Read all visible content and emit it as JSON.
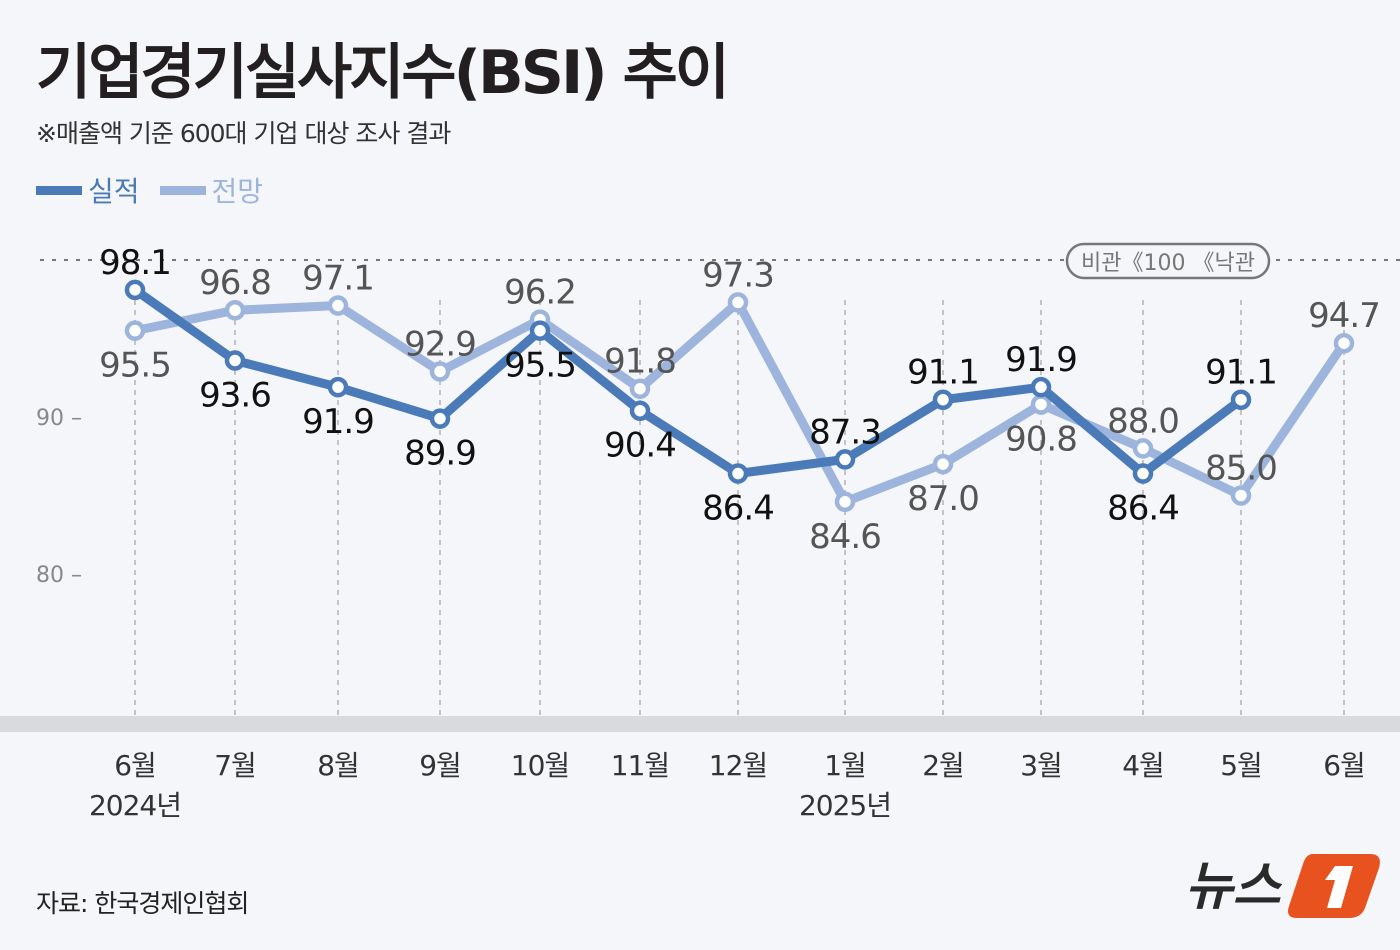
{
  "title": "기업경기실사지수(BSI) 추이",
  "subtitle": "※매출액 기준 600대 기업 대상 조사 결과",
  "source": "자료: 한국경제인협회",
  "logo": "뉴스1",
  "badge": {
    "left": "비관",
    "mid": "100",
    "right": "낙관",
    "sep": "《"
  },
  "chart_data": {
    "type": "line",
    "title": "기업경기실사지수(BSI) 추이",
    "categories": [
      "6월",
      "7월",
      "8월",
      "9월",
      "10월",
      "11월",
      "12월",
      "1월",
      "2월",
      "3월",
      "4월",
      "5월",
      "6월"
    ],
    "year_labels": [
      {
        "index": 0,
        "label": "2024년"
      },
      {
        "index": 7,
        "label": "2025년"
      }
    ],
    "y_ticks": [
      80,
      90
    ],
    "reference_line": 100,
    "ylim": [
      71,
      100
    ],
    "grid": "vertical dashed",
    "legend_position": "top-left",
    "series": [
      {
        "name": "실적",
        "color": "#4a7ab8",
        "values": [
          98.1,
          93.6,
          91.9,
          89.9,
          95.5,
          90.4,
          86.4,
          87.3,
          91.1,
          91.9,
          86.4,
          91.1,
          null
        ],
        "labels": [
          "98.1",
          "93.6",
          "91.9",
          "89.9",
          "95.5",
          "90.4",
          "86.4",
          "87.3",
          "91.1",
          "91.9",
          "86.4",
          "91.1",
          ""
        ]
      },
      {
        "name": "전망",
        "color": "#9db5dc",
        "values": [
          95.5,
          96.8,
          97.1,
          92.9,
          96.2,
          91.8,
          97.3,
          84.6,
          87.0,
          90.8,
          88.0,
          85.0,
          94.7
        ],
        "labels": [
          "95.5",
          "96.8",
          "97.1",
          "92.9",
          "96.2",
          "91.8",
          "97.3",
          "84.6",
          "87.0",
          "90.8",
          "88.0",
          "85.0",
          "94.7"
        ]
      }
    ]
  }
}
